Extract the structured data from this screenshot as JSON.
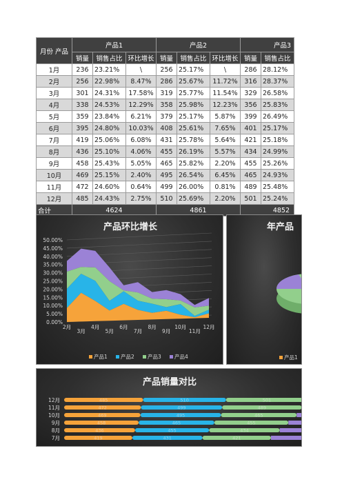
{
  "table": {
    "corner_label": "月份  产品",
    "groups": [
      "产品1",
      "产品2",
      "产品3"
    ],
    "subheaders": [
      "销量",
      "销售占比",
      "环比增长"
    ],
    "rows": [
      {
        "month": "1月",
        "p1": [
          "236",
          "23.21%",
          "\\"
        ],
        "p2": [
          "256",
          "25.17%",
          "\\"
        ],
        "p3": [
          "286",
          "28.12%"
        ]
      },
      {
        "month": "2月",
        "p1": [
          "256",
          "22.98%",
          "8.47%"
        ],
        "p2": [
          "286",
          "25.67%",
          "11.72%"
        ],
        "p3": [
          "316",
          "28.37%"
        ]
      },
      {
        "month": "3月",
        "p1": [
          "301",
          "24.31%",
          "17.58%"
        ],
        "p2": [
          "319",
          "25.77%",
          "11.54%"
        ],
        "p3": [
          "329",
          "26.58%"
        ]
      },
      {
        "month": "4月",
        "p1": [
          "338",
          "24.53%",
          "12.29%"
        ],
        "p2": [
          "358",
          "25.98%",
          "12.23%"
        ],
        "p3": [
          "356",
          "25.83%"
        ]
      },
      {
        "month": "5月",
        "p1": [
          "359",
          "23.84%",
          "6.21%"
        ],
        "p2": [
          "379",
          "25.17%",
          "5.87%"
        ],
        "p3": [
          "399",
          "26.49%"
        ]
      },
      {
        "month": "6月",
        "p1": [
          "395",
          "24.80%",
          "10.03%"
        ],
        "p2": [
          "408",
          "25.61%",
          "7.65%"
        ],
        "p3": [
          "401",
          "25.17%"
        ]
      },
      {
        "month": "7月",
        "p1": [
          "419",
          "25.06%",
          "6.08%"
        ],
        "p2": [
          "431",
          "25.78%",
          "5.64%"
        ],
        "p3": [
          "421",
          "25.18%"
        ]
      },
      {
        "month": "8月",
        "p1": [
          "436",
          "25.10%",
          "4.06%"
        ],
        "p2": [
          "455",
          "26.19%",
          "5.57%"
        ],
        "p3": [
          "434",
          "24.99%"
        ]
      },
      {
        "month": "9月",
        "p1": [
          "458",
          "25.43%",
          "5.05%"
        ],
        "p2": [
          "465",
          "25.82%",
          "2.20%"
        ],
        "p3": [
          "455",
          "25.26%"
        ]
      },
      {
        "month": "10月",
        "p1": [
          "469",
          "25.15%",
          "2.40%"
        ],
        "p2": [
          "495",
          "26.54%",
          "6.45%"
        ],
        "p3": [
          "465",
          "24.93%"
        ]
      },
      {
        "month": "11月",
        "p1": [
          "472",
          "24.60%",
          "0.64%"
        ],
        "p2": [
          "499",
          "26.00%",
          "0.81%"
        ],
        "p3": [
          "489",
          "25.48%"
        ]
      },
      {
        "month": "12月",
        "p1": [
          "485",
          "24.43%",
          "2.75%"
        ],
        "p2": [
          "510",
          "25.69%",
          "2.20%"
        ],
        "p3": [
          "501",
          "25.24%"
        ]
      }
    ],
    "total": {
      "label": "合计",
      "p1": "4624",
      "p2": "4861",
      "p3": "4852"
    }
  },
  "chart_data": [
    {
      "type": "area",
      "title": "产品环比增长",
      "categories": [
        "2月",
        "3月",
        "4月",
        "5月",
        "6月",
        "7月",
        "8月",
        "9月",
        "10月",
        "11月",
        "12月"
      ],
      "yticks": [
        "0.00%",
        "5.00%",
        "10.00%",
        "15.00%",
        "20.00%",
        "25.00%",
        "30.00%",
        "35.00%",
        "40.00%",
        "45.00%",
        "50.00%"
      ],
      "ylim": [
        0,
        50
      ],
      "stacked": true,
      "series": [
        {
          "name": "产品1",
          "color": "#f6a33a",
          "values": [
            8.47,
            17.58,
            12.29,
            6.21,
            10.03,
            6.08,
            4.06,
            5.05,
            2.4,
            0.64,
            2.75
          ]
        },
        {
          "name": "产品2",
          "color": "#28b4e8",
          "values": [
            11.72,
            11.54,
            12.23,
            5.87,
            7.65,
            5.64,
            5.57,
            2.2,
            6.45,
            0.81,
            2.2
          ]
        },
        {
          "name": "产品3",
          "color": "#92cf8c",
          "values": [
            10.49,
            4.12,
            8.21,
            12.08,
            0.5,
            4.99,
            3.0,
            4.84,
            2.2,
            5.16,
            2.45
          ]
        },
        {
          "name": "产品4",
          "color": "#9b82d6",
          "values": [
            6.5,
            11.2,
            10.1,
            8.3,
            3.2,
            6.3,
            4.1,
            5.6,
            3.9,
            1.5,
            4.7
          ]
        }
      ],
      "legend": "bottom"
    },
    {
      "type": "pie",
      "title": "年产品",
      "legend_visible": [
        "产品1"
      ],
      "colors": {
        "产品1": "#f6a33a",
        "产品4": "#9b82d6"
      }
    },
    {
      "type": "bar",
      "title": "产品销量对比",
      "orientation": "horizontal",
      "stacked": true,
      "categories": [
        "12月",
        "11月",
        "10月",
        "9月",
        "8月",
        "7月"
      ],
      "series": [
        {
          "name": "产品1",
          "color": "#f6a33a",
          "values": [
            485,
            472,
            469,
            458,
            436,
            419
          ]
        },
        {
          "name": "产品2",
          "color": "#28b4e8",
          "values": [
            510,
            499,
            495,
            465,
            455,
            431
          ]
        },
        {
          "name": "产品3",
          "color": "#92cf8c",
          "values": [
            501,
            489,
            465,
            455,
            434,
            421
          ]
        }
      ],
      "visible_labels": {
        "产品1": [
          "485",
          "472",
          "469",
          "458",
          "436",
          "419"
        ],
        "产品2": [
          "510",
          "499",
          "495",
          "465",
          "455",
          "431"
        ],
        "产品3": [
          "501",
          "489",
          "465",
          "455",
          "434",
          "421"
        ]
      }
    }
  ]
}
